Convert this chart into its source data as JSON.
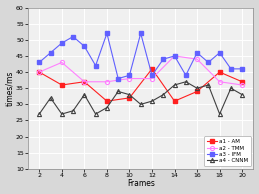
{
  "a1_x": [
    2,
    4,
    6,
    8,
    10,
    12,
    14,
    16,
    18,
    20
  ],
  "a1_y": [
    40,
    36,
    37,
    31,
    32,
    41,
    31,
    34,
    40,
    37
  ],
  "a2_x": [
    2,
    4,
    6,
    8,
    10,
    12,
    14,
    16,
    18,
    20
  ],
  "a2_y": [
    40,
    43,
    37,
    37,
    38,
    38,
    45,
    44,
    37,
    36
  ],
  "a3_x": [
    2,
    3,
    4,
    5,
    6,
    7,
    8,
    9,
    10,
    11,
    12,
    13,
    14,
    15,
    16,
    17,
    18,
    19,
    20
  ],
  "a3_y": [
    43,
    46,
    49,
    51,
    48,
    42,
    52,
    38,
    39,
    52,
    39,
    44,
    45,
    39,
    46,
    43,
    46,
    41,
    41
  ],
  "a4_x": [
    2,
    3,
    4,
    5,
    6,
    7,
    8,
    9,
    10,
    11,
    12,
    13,
    14,
    15,
    16,
    17,
    18,
    19,
    20
  ],
  "a4_y": [
    27,
    32,
    27,
    28,
    33,
    27,
    29,
    34,
    33,
    30,
    31,
    33,
    36,
    37,
    35,
    36,
    27,
    35,
    33
  ],
  "ylim": [
    10,
    60
  ],
  "xlim": [
    1,
    21
  ],
  "xticks": [
    2,
    4,
    6,
    8,
    10,
    12,
    14,
    16,
    18,
    20
  ],
  "yticks": [
    10,
    15,
    20,
    25,
    30,
    35,
    40,
    45,
    50,
    55,
    60
  ],
  "xlabel": "Frames",
  "ylabel": "times/ms",
  "color_AM": "#ff2020",
  "color_TMM": "#ff80ff",
  "color_IFM": "#6060ff",
  "color_CNNM": "#404040",
  "bg_color": "#d8d8d8",
  "plot_bg": "#f0f0f0",
  "grid_color": "#ffffff",
  "label_AM": "a1 - AM",
  "label_TMM": "a2 - TMM",
  "label_IFM": "a3 - IFM",
  "label_CNNM": "a4 - CNNM"
}
